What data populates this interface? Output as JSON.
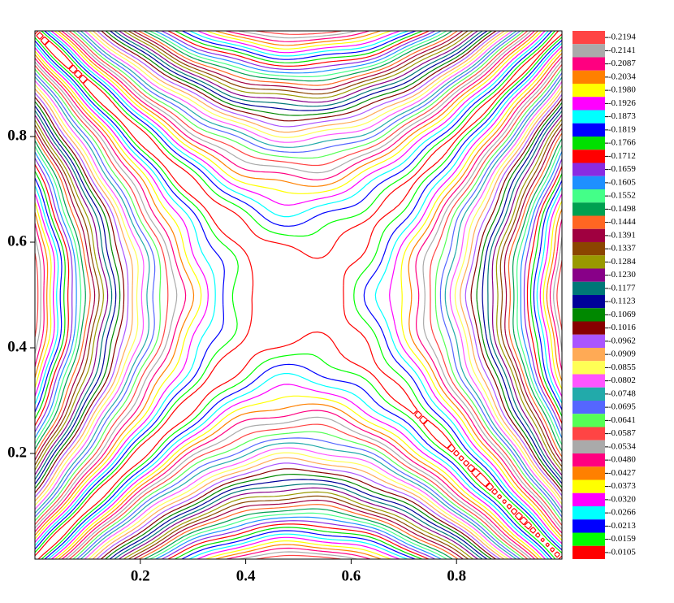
{
  "chart_data": {
    "type": "contour",
    "xlim": [
      0,
      1
    ],
    "ylim": [
      0,
      1
    ],
    "xticks": [
      0.2,
      0.4,
      0.6,
      0.8
    ],
    "yticks": [
      0.2,
      0.4,
      0.6,
      0.8
    ],
    "levels": [
      -0.2194,
      -0.2141,
      -0.2087,
      -0.2034,
      {
        "value": -0.198,
        "label": "-0.1980"
      },
      -0.1926,
      -0.1873,
      -0.1819,
      -0.1766,
      -0.1712,
      -0.1659,
      -0.1605,
      -0.1552,
      -0.1498,
      -0.1444,
      -0.1391,
      -0.1337,
      -0.1284,
      {
        "value": -0.123,
        "label": "-0.1230"
      },
      -0.1177,
      -0.1123,
      -0.1069,
      -0.1016,
      -0.0962,
      -0.0909,
      -0.0855,
      -0.0802,
      -0.0748,
      -0.0695,
      -0.0641,
      -0.0587,
      -0.0534,
      {
        "value": -0.048,
        "label": "-0.0480"
      },
      -0.0427,
      -0.0373,
      {
        "value": -0.032,
        "label": "-0.0320"
      },
      -0.0266,
      -0.0213,
      -0.0159,
      -0.0105
    ],
    "colors": [
      "#ff4444",
      "#aaaaaa",
      "#ff0080",
      "#ff8000",
      "#ffff00",
      "#ff00ff",
      "#00ffff",
      "#0000ff",
      "#00e000",
      "#ff0000",
      "#8a2be2",
      "#1e90ff",
      "#44ff88",
      "#00a050",
      "#ff6622",
      "#a00040",
      "#8b4500",
      "#999900",
      "#880088",
      "#007777",
      "#000099",
      "#008800",
      "#880000",
      "#aa55ff",
      "#ffaa55",
      "#ffff55",
      "#ff55ff",
      "#22aaaa",
      "#5566ff",
      "#55ff55",
      "#ff4444",
      "#aaaaaa",
      "#ff0080",
      "#ff8000",
      "#ffff00",
      "#ff00ff",
      "#00ffff",
      "#0000ff",
      "#00ff00",
      "#ff0000"
    ]
  }
}
